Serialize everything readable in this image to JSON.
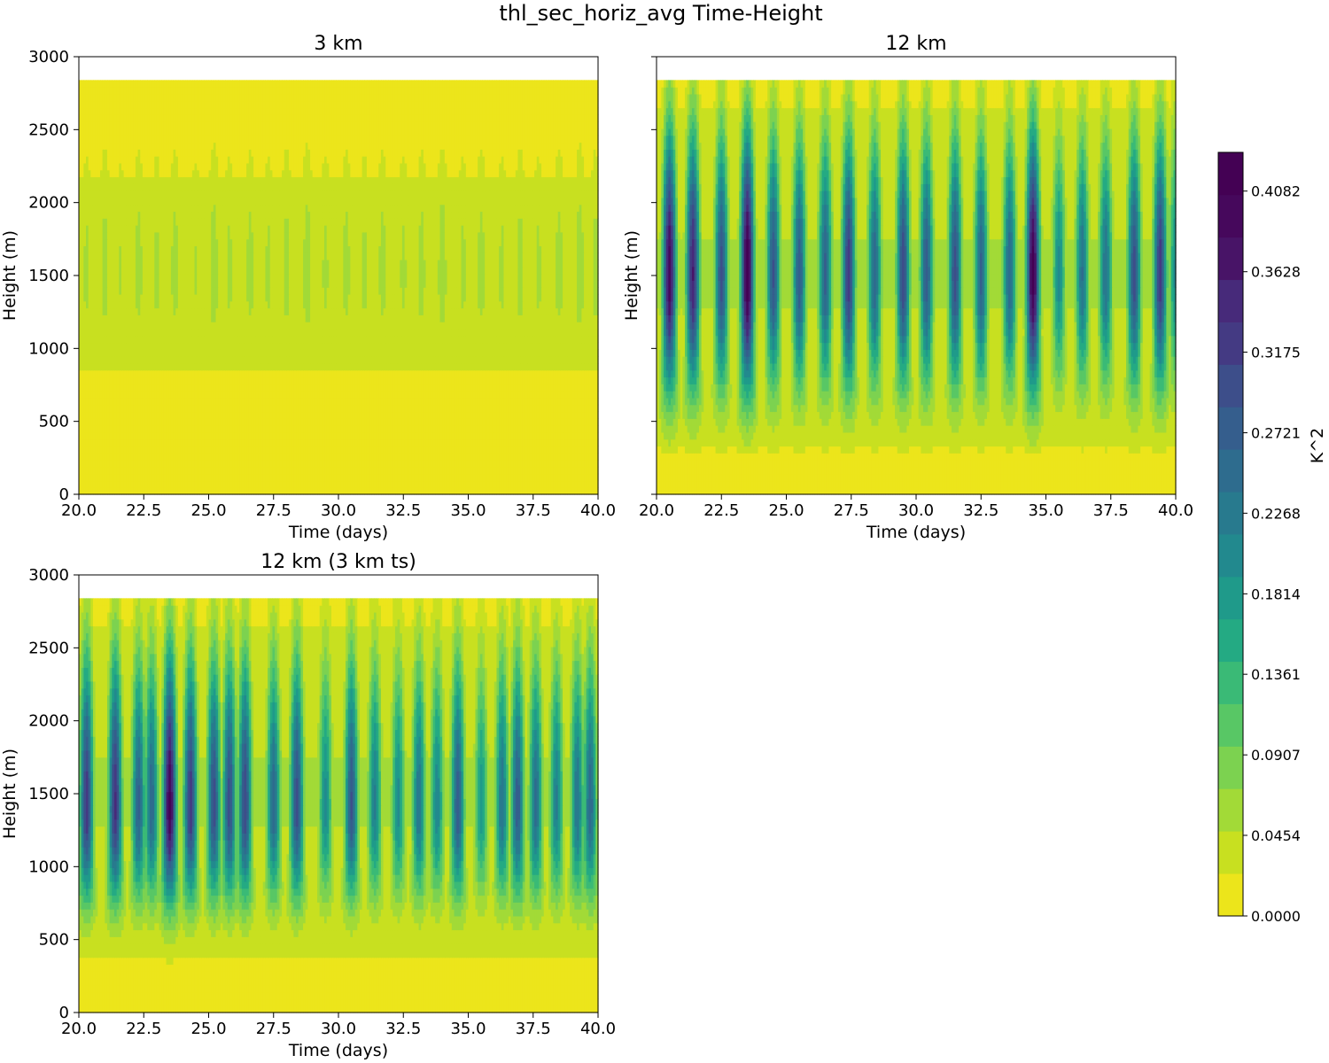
{
  "figure": {
    "suptitle": "thl_sec_horiz_avg Time-Height"
  },
  "chart_data": [
    {
      "type": "heatmap",
      "title": "3 km",
      "xlabel": "Time (days)",
      "ylabel": "Height (m)",
      "xlim": [
        20,
        40
      ],
      "ylim": [
        0,
        3000
      ],
      "data_top": 2840,
      "x_ticks": [
        "20.0",
        "22.5",
        "25.0",
        "27.5",
        "30.0",
        "32.5",
        "35.0",
        "37.5",
        "40.0"
      ],
      "y_ticks": [
        "0",
        "500",
        "1000",
        "1500",
        "2000",
        "2500",
        "3000"
      ],
      "show_y_tick_labels": true,
      "pattern": {
        "bursts": [
          20.3,
          21.0,
          21.6,
          22.3,
          23.0,
          23.7,
          24.5,
          25.2,
          25.8,
          26.6,
          27.3,
          28.0,
          28.8,
          29.5,
          30.3,
          31.0,
          31.7,
          32.5,
          33.2,
          34.0,
          34.8,
          35.5,
          36.3,
          37.0,
          37.7,
          38.5,
          39.3,
          39.9
        ],
        "amplitudes": [
          0.055,
          0.06,
          0.05,
          0.06,
          0.055,
          0.06,
          0.05,
          0.065,
          0.055,
          0.06,
          0.055,
          0.06,
          0.065,
          0.055,
          0.06,
          0.055,
          0.06,
          0.055,
          0.06,
          0.065,
          0.055,
          0.06,
          0.055,
          0.06,
          0.055,
          0.06,
          0.065,
          0.06
        ],
        "base_height": 700,
        "peak_height": 1500,
        "top_height": 2700,
        "background": 0.033
      }
    },
    {
      "type": "heatmap",
      "title": "12 km",
      "xlabel": "Time (days)",
      "ylabel": "Height (m)",
      "xlim": [
        20,
        40
      ],
      "ylim": [
        0,
        3000
      ],
      "data_top": 2840,
      "x_ticks": [
        "20.0",
        "22.5",
        "25.0",
        "27.5",
        "30.0",
        "32.5",
        "35.0",
        "37.5",
        "40.0"
      ],
      "y_ticks": [
        "0",
        "500",
        "1000",
        "1500",
        "2000",
        "2500",
        "3000"
      ],
      "show_y_tick_labels": false,
      "pattern": {
        "bursts": [
          20.5,
          21.4,
          22.5,
          23.5,
          24.5,
          25.5,
          26.5,
          27.4,
          28.4,
          29.5,
          30.4,
          31.5,
          32.5,
          33.6,
          34.5,
          35.5,
          36.4,
          37.3,
          38.4,
          39.4,
          40.0
        ],
        "amplitudes": [
          0.4,
          0.36,
          0.3,
          0.43,
          0.29,
          0.28,
          0.27,
          0.33,
          0.26,
          0.31,
          0.28,
          0.3,
          0.27,
          0.26,
          0.42,
          0.2,
          0.24,
          0.24,
          0.3,
          0.33,
          0.2
        ],
        "base_height": 450,
        "peak_height": 1500,
        "top_height": 2850,
        "background": 0.05
      }
    },
    {
      "type": "heatmap",
      "title": "12 km (3 km ts)",
      "xlabel": "Time (days)",
      "ylabel": "Height (m)",
      "xlim": [
        20,
        40
      ],
      "ylim": [
        0,
        3000
      ],
      "data_top": 2840,
      "x_ticks": [
        "20.0",
        "22.5",
        "25.0",
        "27.5",
        "30.0",
        "32.5",
        "35.0",
        "37.5",
        "40.0"
      ],
      "y_ticks": [
        "0",
        "500",
        "1000",
        "1500",
        "2000",
        "2500",
        "3000"
      ],
      "show_y_tick_labels": true,
      "pattern": {
        "bursts": [
          20.3,
          21.4,
          22.3,
          22.8,
          23.5,
          24.3,
          25.2,
          25.8,
          26.4,
          27.5,
          28.4,
          29.5,
          30.5,
          31.4,
          32.3,
          33.1,
          33.8,
          34.6,
          35.5,
          36.3,
          36.9,
          37.6,
          38.4,
          39.2,
          39.7
        ],
        "amplitudes": [
          0.33,
          0.34,
          0.27,
          0.26,
          0.41,
          0.33,
          0.3,
          0.3,
          0.31,
          0.26,
          0.3,
          0.2,
          0.29,
          0.22,
          0.2,
          0.24,
          0.21,
          0.28,
          0.18,
          0.24,
          0.28,
          0.25,
          0.22,
          0.24,
          0.26
        ],
        "base_height": 550,
        "peak_height": 1400,
        "top_height": 2850,
        "background": 0.05
      }
    }
  ],
  "colorbar": {
    "label": "K^2",
    "min": 0.0,
    "max": 0.43,
    "levels": 19,
    "tick_values": [
      0.0,
      0.0454,
      0.0907,
      0.1361,
      0.1814,
      0.2268,
      0.2721,
      0.3175,
      0.3628,
      0.4082
    ],
    "tick_labels": [
      "0.0000",
      "0.0454",
      "0.0907",
      "0.1361",
      "0.1814",
      "0.2268",
      "0.2721",
      "0.3175",
      "0.3628",
      "0.4082"
    ],
    "colors": [
      "#ece51b",
      "#c8e020",
      "#a2da37",
      "#7cd250",
      "#58c765",
      "#3aba76",
      "#24aa83",
      "#1f9a8a",
      "#22898e",
      "#287a8e",
      "#2e6c8e",
      "#355e8d",
      "#3d4e8a",
      "#443a83",
      "#472a7a",
      "#481467",
      "#46085c",
      "#440154"
    ]
  }
}
